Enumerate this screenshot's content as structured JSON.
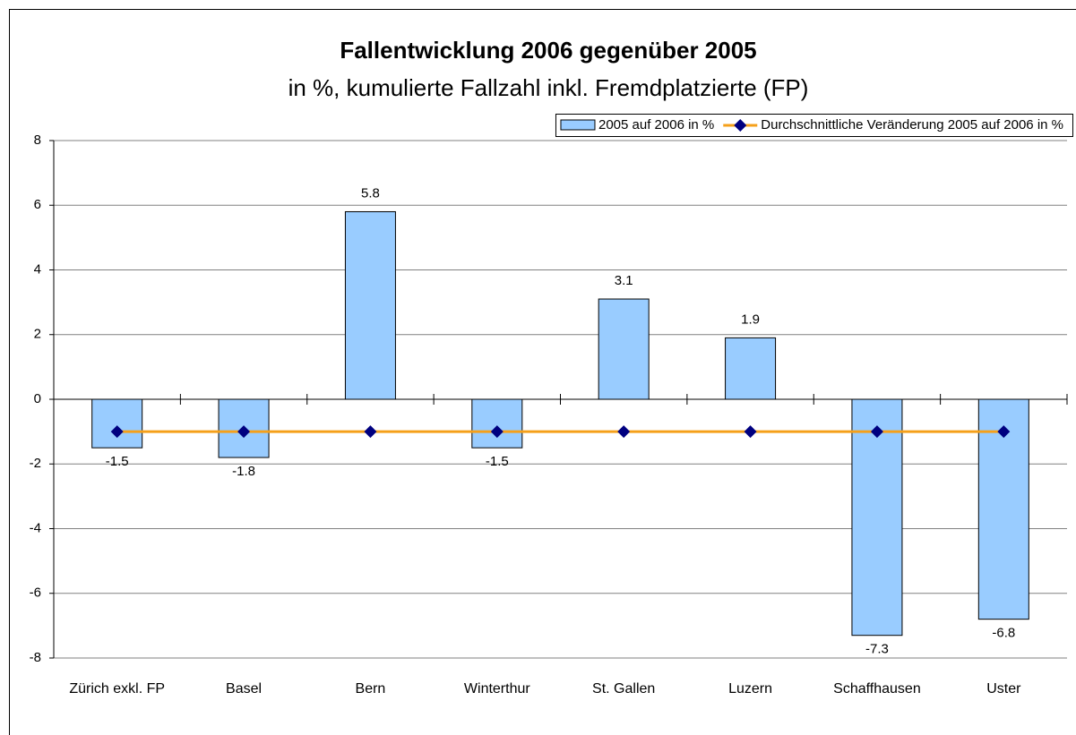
{
  "chart_data": {
    "type": "bar+line",
    "title": "Fallentwicklung 2006 gegenüber 2005",
    "subtitle": "in %, kumulierte Fallzahl inkl. Fremdplatzierte (FP)",
    "categories": [
      "Zürich exkl. FP",
      "Basel",
      "Bern",
      "Winterthur",
      "St. Gallen",
      "Luzern",
      "Schaffhausen",
      "Uster"
    ],
    "series": [
      {
        "name": "2005 auf 2006 in %",
        "type": "bar",
        "color": "#99ccff",
        "values": [
          -1.5,
          -1.8,
          5.8,
          -1.5,
          3.1,
          1.9,
          -7.3,
          -6.8
        ]
      },
      {
        "name": "Durchschnittliche Veränderung 2005 auf 2006 in %",
        "type": "line",
        "color": "#f5a01a",
        "marker_color": "#000080",
        "values": [
          -1,
          -1,
          -1,
          -1,
          -1,
          -1,
          -1,
          -1
        ]
      }
    ],
    "ylim": [
      -8,
      8
    ],
    "yticks": [
      -8,
      -6,
      -4,
      -2,
      0,
      2,
      4,
      6,
      8
    ],
    "grid": true,
    "legend": "top-right"
  }
}
